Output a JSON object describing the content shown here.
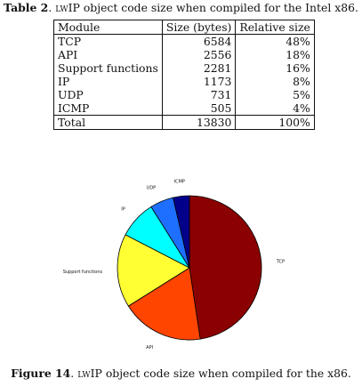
{
  "table": {
    "caption_label": "Table 2",
    "caption_sep": ". ",
    "caption_brand": "lwIP",
    "caption_rest": " object code size when compiled for the Intel x86.",
    "headers": [
      "Module",
      "Size (bytes)",
      "Relative size"
    ],
    "rows": [
      {
        "module": "TCP",
        "size": "6584",
        "relative": "48%"
      },
      {
        "module": "API",
        "size": "2556",
        "relative": "18%"
      },
      {
        "module": "Support functions",
        "size": "2281",
        "relative": "16%"
      },
      {
        "module": "IP",
        "size": "1173",
        "relative": "8%"
      },
      {
        "module": "UDP",
        "size": "731",
        "relative": "5%"
      },
      {
        "module": "ICMP",
        "size": "505",
        "relative": "4%"
      }
    ],
    "total": {
      "module": "Total",
      "size": "13830",
      "relative": "100%"
    }
  },
  "figure": {
    "caption_label": "Figure 14",
    "caption_sep": ". ",
    "caption_brand": "lwIP",
    "caption_rest": " object code size when compiled for the x86."
  },
  "chart_data": {
    "type": "pie",
    "slices": [
      {
        "label": "TCP",
        "value": 6584,
        "color": "#8b0000"
      },
      {
        "label": "API",
        "value": 2556,
        "color": "#ff4500"
      },
      {
        "label": "Support functions",
        "value": 2281,
        "color": "#ffff33"
      },
      {
        "label": "IP",
        "value": 1173,
        "color": "#00ffff"
      },
      {
        "label": "UDP",
        "value": 731,
        "color": "#1e6fff"
      },
      {
        "label": "ICMP",
        "value": 505,
        "color": "#00008b"
      }
    ]
  }
}
